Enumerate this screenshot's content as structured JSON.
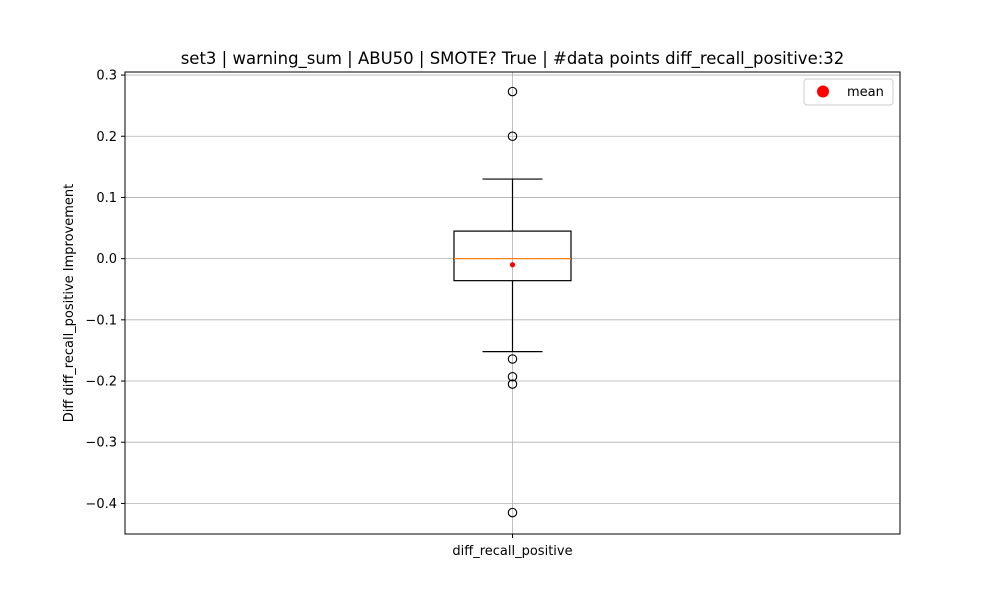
{
  "chart_data": {
    "type": "box",
    "title": "set3 | warning_sum | ABU50 | SMOTE? True | #data points diff_recall_positive:32",
    "xlabel": "",
    "ylabel": "Diff diff_recall_positive Improvement",
    "categories": [
      "diff_recall_positive"
    ],
    "ylim": [
      -0.45,
      0.305
    ],
    "y_ticks": [
      -0.4,
      -0.3,
      -0.2,
      -0.1,
      0.0,
      0.1,
      0.2,
      0.3
    ],
    "y_tick_labels": [
      "−0.4",
      "−0.3",
      "−0.2",
      "−0.1",
      "0.0",
      "0.1",
      "0.2",
      "0.3"
    ],
    "grid": true,
    "legend": {
      "position": "top-right",
      "entries": [
        {
          "label": "mean",
          "color": "#ff0000"
        }
      ]
    },
    "boxes": [
      {
        "category": "diff_recall_positive",
        "whisker_low": -0.152,
        "q1": -0.036,
        "median": 0.0,
        "q3": 0.045,
        "whisker_high": 0.13,
        "mean": -0.01,
        "outliers": [
          0.273,
          0.2,
          -0.164,
          -0.193,
          -0.205,
          -0.415
        ]
      }
    ],
    "colors": {
      "box": "#000000",
      "median": "#ff7f0e",
      "mean": "#ff0000",
      "grid": "#b0b0b0"
    }
  }
}
